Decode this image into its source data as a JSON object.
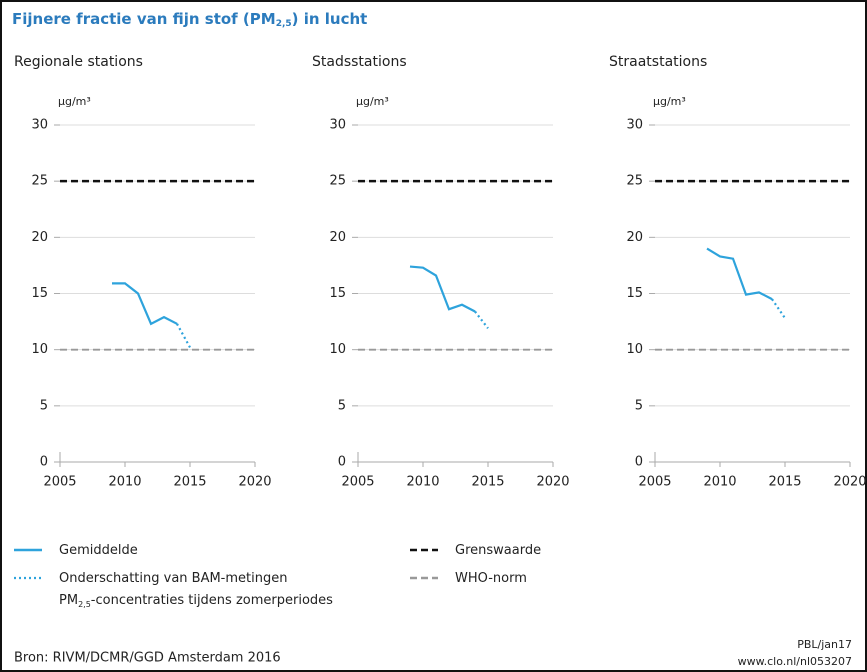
{
  "title": {
    "text": "Fijnere fractie van fijn stof (PM",
    "sub": "2,5",
    "end": ") in lucht"
  },
  "chart_data": [
    {
      "type": "line",
      "subtitle": "Regionale stations",
      "y_label": "µg/m³",
      "x": [
        2009,
        2010,
        2011,
        2012,
        2013,
        2014,
        2015
      ],
      "series": [
        {
          "color": "#2ea3dc",
          "style": "solid",
          "values": [
            15.9,
            15.9,
            15.0,
            12.3,
            12.9,
            12.3,
            null
          ]
        },
        {
          "color": "#2ea3dc",
          "style": "dotted",
          "values": [
            null,
            null,
            null,
            null,
            null,
            12.3,
            10.2
          ]
        }
      ],
      "hlines": [
        {
          "value": 25,
          "color": "#111",
          "style": "dashed"
        },
        {
          "value": 10,
          "color": "#999",
          "style": "dashed"
        }
      ],
      "xlim": [
        2005,
        2020
      ],
      "xticks": [
        2005,
        2010,
        2015,
        2020
      ],
      "ylim": [
        0,
        30
      ],
      "yticks": [
        0,
        5,
        10,
        15,
        20,
        25,
        30
      ],
      "grid": true
    },
    {
      "type": "line",
      "subtitle": "Stadsstations",
      "y_label": "µg/m³",
      "x": [
        2009,
        2010,
        2011,
        2012,
        2013,
        2014,
        2015
      ],
      "series": [
        {
          "color": "#2ea3dc",
          "style": "solid",
          "values": [
            17.4,
            17.3,
            16.6,
            13.6,
            14.0,
            13.4,
            null
          ]
        },
        {
          "color": "#2ea3dc",
          "style": "dotted",
          "values": [
            null,
            null,
            null,
            null,
            null,
            13.4,
            11.9
          ]
        }
      ],
      "hlines": [
        {
          "value": 25,
          "color": "#111",
          "style": "dashed"
        },
        {
          "value": 10,
          "color": "#999",
          "style": "dashed"
        }
      ],
      "xlim": [
        2005,
        2020
      ],
      "xticks": [
        2005,
        2010,
        2015,
        2020
      ],
      "ylim": [
        0,
        30
      ],
      "yticks": [
        0,
        5,
        10,
        15,
        20,
        25,
        30
      ],
      "grid": true
    },
    {
      "type": "line",
      "subtitle": "Straatstations",
      "y_label": "µg/m³",
      "x": [
        2009,
        2010,
        2011,
        2012,
        2013,
        2014,
        2015
      ],
      "series": [
        {
          "color": "#2ea3dc",
          "style": "solid",
          "values": [
            19.0,
            18.3,
            18.1,
            14.9,
            15.1,
            14.5,
            null
          ]
        },
        {
          "color": "#2ea3dc",
          "style": "dotted",
          "values": [
            null,
            null,
            null,
            null,
            null,
            14.5,
            12.8
          ]
        }
      ],
      "hlines": [
        {
          "value": 25,
          "color": "#111",
          "style": "dashed"
        },
        {
          "value": 10,
          "color": "#999",
          "style": "dashed"
        }
      ],
      "xlim": [
        2005,
        2020
      ],
      "xticks": [
        2005,
        2010,
        2015,
        2020
      ],
      "ylim": [
        0,
        30
      ],
      "yticks": [
        0,
        5,
        10,
        15,
        20,
        25,
        30
      ],
      "grid": true
    }
  ],
  "legend": [
    {
      "label": [
        "Gemiddelde"
      ],
      "color": "#2ea3dc",
      "style": "solid"
    },
    {
      "label": [
        "Onderschatting van BAM-metingen",
        "PM",
        "2,5",
        "-concentraties tijdens zomerperiodes"
      ],
      "color": "#2ea3dc",
      "style": "dotted"
    },
    {
      "label": [
        "Grenswaarde"
      ],
      "color": "#111",
      "style": "dashed"
    },
    {
      "label": [
        "WHO-norm"
      ],
      "color": "#999",
      "style": "dashed"
    }
  ],
  "source": "Bron: RIVM/DCMR/GGD Amsterdam 2016",
  "credit": [
    "PBL/jan17",
    "www.clo.nl/nl053207"
  ]
}
